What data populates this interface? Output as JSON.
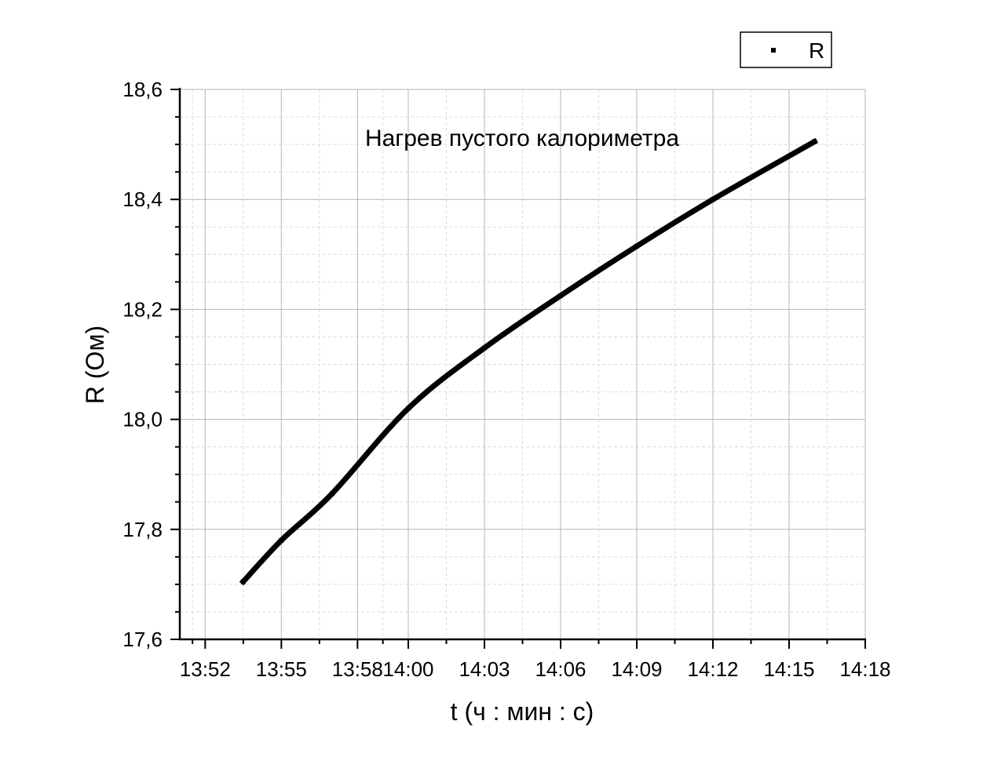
{
  "chart_data": {
    "type": "line",
    "title": "Нагрев пустого калориметра",
    "xlabel": "t (ч : мин : с)",
    "ylabel": "R (Ом)",
    "x_unit": "minutes",
    "xlim": [
      "13:51:00",
      "14:18:00"
    ],
    "ylim": [
      17.6,
      18.6
    ],
    "x_tick_values": [
      "13:52",
      "13:55",
      "13:58",
      "14:00",
      "14:03",
      "14:06",
      "14:09",
      "14:12",
      "14:15",
      "14:18"
    ],
    "x_tick_labels": [
      "13:52",
      "13:55",
      "13:58",
      "14:00",
      "14:03",
      "14:06",
      "14:09",
      "14:12",
      "14:15",
      "14:18"
    ],
    "y_ticks": [
      17.6,
      17.8,
      18.0,
      18.2,
      18.4,
      18.6
    ],
    "y_tick_labels": [
      "17,6",
      "17,8",
      "18,0",
      "18,2",
      "18,4",
      "18,6"
    ],
    "grid": true,
    "legend_position": "top-right",
    "series": [
      {
        "name": "R",
        "color": "#000000",
        "x": [
          "13:53:30",
          "13:55:00",
          "13:57:00",
          "14:00:00",
          "14:03:00",
          "14:06:00",
          "14:09:00",
          "14:12:00",
          "14:16:00"
        ],
        "y": [
          17.705,
          17.78,
          17.865,
          18.02,
          18.13,
          18.225,
          18.315,
          18.4,
          18.505
        ]
      }
    ]
  }
}
